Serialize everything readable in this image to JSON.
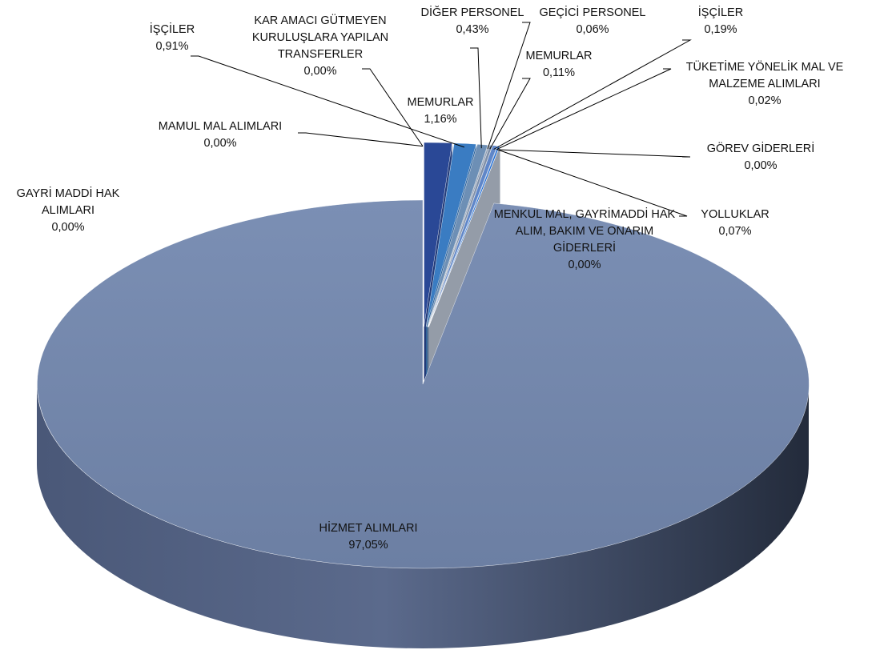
{
  "chart_data": {
    "type": "pie",
    "categories": [
      "MEMURLAR",
      "İŞÇİLER",
      "DİĞER PERSONEL",
      "GEÇİCİ PERSONEL",
      "MEMURLAR",
      "İŞÇİLER",
      "TÜKETİME YÖNELİK MAL VE MALZEME ALIMLARI",
      "YOLLUKLAR",
      "GÖREV GİDERLERİ",
      "MENKUL MAL, GAYRİMADDİ HAK ALIM, BAKIM VE ONARIM GİDERLERİ",
      "HİZMET ALIMLARI",
      "MAMUL MAL ALIMLARI",
      "GAYRİ MADDİ HAK ALIMLARI",
      "KAR AMACI GÜTMEYEN KURULUŞLARA YAPILAN TRANSFERLER"
    ],
    "values": [
      1.16,
      0.91,
      0.43,
      0.06,
      0.11,
      0.19,
      0.02,
      0.07,
      0,
      0,
      97.05,
      0,
      0,
      0
    ],
    "value_labels": [
      "1,16%",
      "0,91%",
      "0,43%",
      "0,06%",
      "0,11%",
      "0,19%",
      "0,02%",
      "0,07%",
      "0,00%",
      "0,00%",
      "97,05%",
      "0,00%",
      "0,00%",
      "0,00%"
    ],
    "colors": [
      "#2a4896",
      "#3a7cc2",
      "#6d8fb5",
      "#8e9db3",
      "#7d8ea8",
      "#5f86c8",
      "#4a6aa0",
      "#1a6ad6",
      "#9aa8bd",
      "#b9c3d2",
      "#7689ad",
      "#c8ced8",
      "#e4e7ec",
      "#d2d7df"
    ]
  }
}
